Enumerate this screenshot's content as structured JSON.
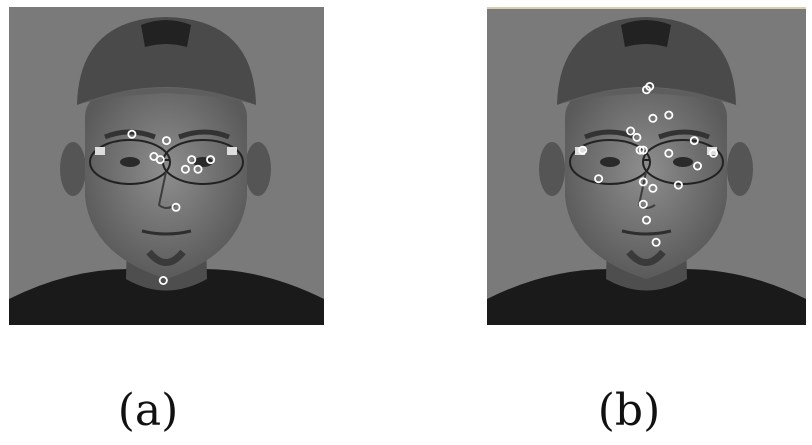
{
  "panels": [
    {
      "id": "a",
      "caption": "(a)"
    },
    {
      "id": "b",
      "caption": "(b)"
    }
  ],
  "markers": {
    "a": [
      [
        0.39,
        0.4
      ],
      [
        0.46,
        0.47
      ],
      [
        0.48,
        0.48
      ],
      [
        0.5,
        0.42
      ],
      [
        0.58,
        0.48
      ],
      [
        0.6,
        0.51
      ],
      [
        0.56,
        0.51
      ],
      [
        0.64,
        0.48
      ],
      [
        0.53,
        0.63
      ],
      [
        0.49,
        0.86
      ]
    ],
    "b": [
      [
        0.5,
        0.26
      ],
      [
        0.51,
        0.25
      ],
      [
        0.52,
        0.35
      ],
      [
        0.57,
        0.34
      ],
      [
        0.45,
        0.39
      ],
      [
        0.47,
        0.41
      ],
      [
        0.48,
        0.45
      ],
      [
        0.49,
        0.45
      ],
      [
        0.57,
        0.46
      ],
      [
        0.65,
        0.42
      ],
      [
        0.66,
        0.5
      ],
      [
        0.71,
        0.46
      ],
      [
        0.3,
        0.45
      ],
      [
        0.35,
        0.54
      ],
      [
        0.49,
        0.55
      ],
      [
        0.52,
        0.57
      ],
      [
        0.6,
        0.56
      ],
      [
        0.49,
        0.62
      ],
      [
        0.5,
        0.67
      ],
      [
        0.53,
        0.74
      ]
    ]
  }
}
